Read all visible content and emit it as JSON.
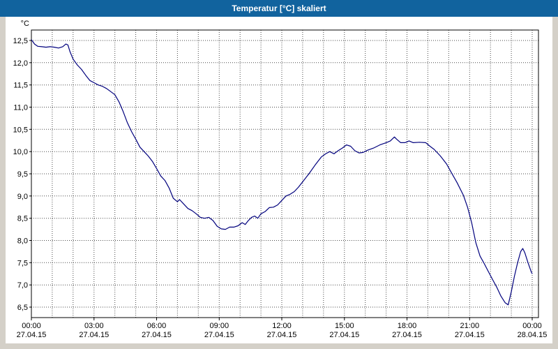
{
  "window": {
    "title": "Temperatur [°C] skaliert"
  },
  "colors": {
    "titlebar": "#11639E",
    "plot_background": "#ffffff",
    "page_background": "#d4d0c8",
    "grid": "#4a4a4a",
    "line": "#00007D"
  },
  "chart_data": {
    "type": "line",
    "title": "Temperatur [°C] skaliert",
    "xlabel": "",
    "ylabel": "°C",
    "ylim": [
      6.5,
      12.5
    ],
    "ytick_step": 0.5,
    "xlim": [
      0,
      24
    ],
    "grid": "dotted; vertical line every hour, horizontal line every 0.5 °C",
    "legend": "none",
    "yticks_labels": [
      "6,5",
      "7,0",
      "7,5",
      "8,0",
      "8,5",
      "9,0",
      "9,5",
      "10,0",
      "10,5",
      "11,0",
      "11,5",
      "12,0",
      "12,5"
    ],
    "xticks": [
      {
        "h": 0,
        "time": "00:00",
        "date": "27.04.15"
      },
      {
        "h": 3,
        "time": "03:00",
        "date": "27.04.15"
      },
      {
        "h": 6,
        "time": "06:00",
        "date": "27.04.15"
      },
      {
        "h": 9,
        "time": "09:00",
        "date": "27.04.15"
      },
      {
        "h": 12,
        "time": "12:00",
        "date": "27.04.15"
      },
      {
        "h": 15,
        "time": "15:00",
        "date": "27.04.15"
      },
      {
        "h": 18,
        "time": "18:00",
        "date": "27.04.15"
      },
      {
        "h": 21,
        "time": "21:00",
        "date": "27.04.15"
      },
      {
        "h": 24,
        "time": "00:00",
        "date": "28.04.15"
      }
    ],
    "series": [
      {
        "name": "Temperatur",
        "color": "#00007D",
        "points": [
          [
            0,
            12.52
          ],
          [
            0.15,
            12.42
          ],
          [
            0.3,
            12.37
          ],
          [
            0.5,
            12.36
          ],
          [
            0.7,
            12.35
          ],
          [
            0.9,
            12.36
          ],
          [
            1.1,
            12.35
          ],
          [
            1.3,
            12.33
          ],
          [
            1.5,
            12.36
          ],
          [
            1.65,
            12.42
          ],
          [
            1.75,
            12.4
          ],
          [
            1.85,
            12.25
          ],
          [
            2,
            12.08
          ],
          [
            2.2,
            11.95
          ],
          [
            2.4,
            11.85
          ],
          [
            2.6,
            11.72
          ],
          [
            2.8,
            11.6
          ],
          [
            3,
            11.55
          ],
          [
            3.2,
            11.5
          ],
          [
            3.4,
            11.47
          ],
          [
            3.6,
            11.42
          ],
          [
            3.8,
            11.35
          ],
          [
            4,
            11.28
          ],
          [
            4.2,
            11.12
          ],
          [
            4.4,
            10.9
          ],
          [
            4.6,
            10.65
          ],
          [
            4.8,
            10.45
          ],
          [
            5,
            10.28
          ],
          [
            5.2,
            10.1
          ],
          [
            5.4,
            10
          ],
          [
            5.6,
            9.9
          ],
          [
            5.8,
            9.78
          ],
          [
            6,
            9.62
          ],
          [
            6.2,
            9.45
          ],
          [
            6.4,
            9.35
          ],
          [
            6.6,
            9.18
          ],
          [
            6.8,
            8.95
          ],
          [
            7,
            8.87
          ],
          [
            7.1,
            8.92
          ],
          [
            7.3,
            8.82
          ],
          [
            7.5,
            8.72
          ],
          [
            7.7,
            8.67
          ],
          [
            7.9,
            8.6
          ],
          [
            8.1,
            8.52
          ],
          [
            8.3,
            8.5
          ],
          [
            8.5,
            8.52
          ],
          [
            8.7,
            8.45
          ],
          [
            8.9,
            8.32
          ],
          [
            9.1,
            8.26
          ],
          [
            9.3,
            8.25
          ],
          [
            9.5,
            8.3
          ],
          [
            9.7,
            8.3
          ],
          [
            9.9,
            8.33
          ],
          [
            10.1,
            8.4
          ],
          [
            10.25,
            8.36
          ],
          [
            10.4,
            8.45
          ],
          [
            10.55,
            8.52
          ],
          [
            10.7,
            8.55
          ],
          [
            10.85,
            8.5
          ],
          [
            11,
            8.6
          ],
          [
            11.2,
            8.65
          ],
          [
            11.4,
            8.74
          ],
          [
            11.6,
            8.75
          ],
          [
            11.8,
            8.8
          ],
          [
            12,
            8.9
          ],
          [
            12.2,
            9
          ],
          [
            12.4,
            9.04
          ],
          [
            12.6,
            9.1
          ],
          [
            12.8,
            9.2
          ],
          [
            13,
            9.32
          ],
          [
            13.3,
            9.5
          ],
          [
            13.6,
            9.7
          ],
          [
            13.9,
            9.88
          ],
          [
            14.1,
            9.95
          ],
          [
            14.3,
            10
          ],
          [
            14.5,
            9.95
          ],
          [
            14.7,
            10.02
          ],
          [
            14.9,
            10.08
          ],
          [
            15.1,
            10.15
          ],
          [
            15.3,
            10.12
          ],
          [
            15.5,
            10.02
          ],
          [
            15.7,
            9.97
          ],
          [
            15.9,
            9.98
          ],
          [
            16.1,
            10.03
          ],
          [
            16.4,
            10.08
          ],
          [
            16.7,
            10.15
          ],
          [
            17,
            10.2
          ],
          [
            17.2,
            10.24
          ],
          [
            17.4,
            10.33
          ],
          [
            17.5,
            10.28
          ],
          [
            17.7,
            10.2
          ],
          [
            17.9,
            10.2
          ],
          [
            18.1,
            10.24
          ],
          [
            18.3,
            10.2
          ],
          [
            18.6,
            10.21
          ],
          [
            18.9,
            10.2
          ],
          [
            19.1,
            10.12
          ],
          [
            19.3,
            10.05
          ],
          [
            19.6,
            9.9
          ],
          [
            19.9,
            9.72
          ],
          [
            20.1,
            9.55
          ],
          [
            20.4,
            9.3
          ],
          [
            20.7,
            9.02
          ],
          [
            20.9,
            8.75
          ],
          [
            21.1,
            8.4
          ],
          [
            21.3,
            7.95
          ],
          [
            21.5,
            7.65
          ],
          [
            21.7,
            7.48
          ],
          [
            21.9,
            7.3
          ],
          [
            22.1,
            7.12
          ],
          [
            22.3,
            6.95
          ],
          [
            22.5,
            6.75
          ],
          [
            22.7,
            6.6
          ],
          [
            22.85,
            6.55
          ],
          [
            23,
            6.85
          ],
          [
            23.15,
            7.2
          ],
          [
            23.3,
            7.5
          ],
          [
            23.45,
            7.75
          ],
          [
            23.55,
            7.82
          ],
          [
            23.65,
            7.72
          ],
          [
            23.8,
            7.5
          ],
          [
            23.95,
            7.3
          ],
          [
            24,
            7.25
          ]
        ]
      }
    ]
  }
}
